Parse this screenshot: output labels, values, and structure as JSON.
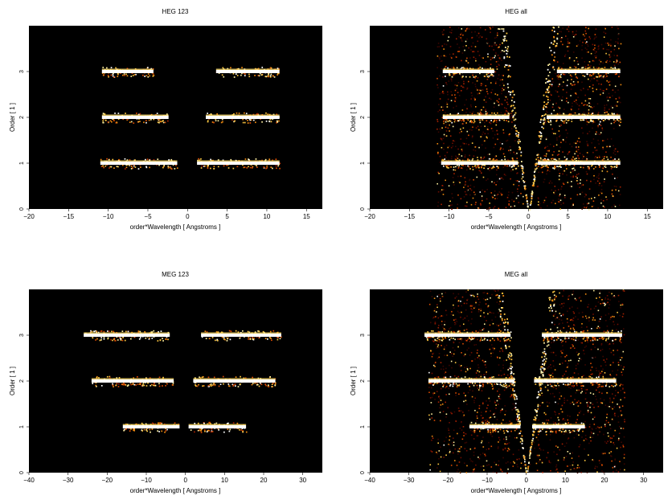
{
  "chart_data": [
    {
      "type": "heatmap",
      "title": "HEG 123",
      "xlabel": "order*Wavelength [ Angstroms ]",
      "ylabel": "Order [ 1 ]",
      "xlim": [
        -20,
        17
      ],
      "ylim": [
        0,
        4
      ],
      "xticks": [
        -20,
        -15,
        -10,
        -5,
        0,
        5,
        10,
        15
      ],
      "yticks": [
        0,
        1,
        2,
        3
      ],
      "background": "#000000",
      "bands": [
        {
          "order": 1,
          "segments": [
            [
              -11,
              -1.3
            ],
            [
              1.2,
              11.6
            ]
          ]
        },
        {
          "order": 2,
          "segments": [
            [
              -10.8,
              -2.4
            ],
            [
              2.3,
              11.6
            ]
          ]
        },
        {
          "order": 3,
          "segments": [
            [
              -10.8,
              -4.3
            ],
            [
              3.6,
              11.6
            ]
          ]
        }
      ],
      "diffuse": false
    },
    {
      "type": "heatmap",
      "title": "HEG all",
      "xlabel": "order*Wavelength [ Angstroms ]",
      "ylabel": "Order [ 1 ]",
      "xlim": [
        -20,
        17
      ],
      "ylim": [
        0,
        4
      ],
      "xticks": [
        -20,
        -15,
        -10,
        -5,
        0,
        5,
        10,
        15
      ],
      "yticks": [
        0,
        1,
        2,
        3
      ],
      "background": "#000000",
      "bands": [
        {
          "order": 1,
          "segments": [
            [
              -11,
              -1.3
            ],
            [
              1.2,
              11.6
            ]
          ]
        },
        {
          "order": 2,
          "segments": [
            [
              -10.8,
              -2.4
            ],
            [
              2.3,
              11.6
            ]
          ]
        },
        {
          "order": 3,
          "segments": [
            [
              -10.8,
              -4.3
            ],
            [
              3.6,
              11.6
            ]
          ]
        }
      ],
      "diffuse": true
    },
    {
      "type": "heatmap",
      "title": "MEG 123",
      "xlabel": "order*Wavelength [ Angstroms ]",
      "ylabel": "Order [ 1 ]",
      "xlim": [
        -40,
        35
      ],
      "ylim": [
        0,
        4
      ],
      "xticks": [
        -40,
        -30,
        -20,
        -10,
        0,
        10,
        20,
        30
      ],
      "yticks": [
        0,
        1,
        2,
        3
      ],
      "background": "#000000",
      "bands": [
        {
          "order": 1,
          "segments": [
            [
              -16,
              -1.5
            ],
            [
              0.8,
              15.5
            ]
          ]
        },
        {
          "order": 2,
          "segments": [
            [
              -24,
              -3
            ],
            [
              2,
              23
            ]
          ]
        },
        {
          "order": 3,
          "segments": [
            [
              -26,
              -4
            ],
            [
              4,
              24.5
            ]
          ]
        }
      ],
      "diffuse": false
    },
    {
      "type": "heatmap",
      "title": "MEG all",
      "xlabel": "order*Wavelength [ Angstroms ]",
      "ylabel": "Order [ 1 ]",
      "xlim": [
        -40,
        35
      ],
      "ylim": [
        0,
        4
      ],
      "xticks": [
        -40,
        -30,
        -20,
        -10,
        0,
        10,
        20,
        30
      ],
      "yticks": [
        0,
        1,
        2,
        3
      ],
      "background": "#000000",
      "bands": [
        {
          "order": 1,
          "segments": [
            [
              -14.5,
              -1.5
            ],
            [
              1.5,
              15
            ]
          ]
        },
        {
          "order": 2,
          "segments": [
            [
              -25,
              -3
            ],
            [
              2,
              23
            ]
          ]
        },
        {
          "order": 3,
          "segments": [
            [
              -26,
              -4
            ],
            [
              4,
              24.5
            ]
          ]
        }
      ],
      "diffuse": true
    }
  ]
}
